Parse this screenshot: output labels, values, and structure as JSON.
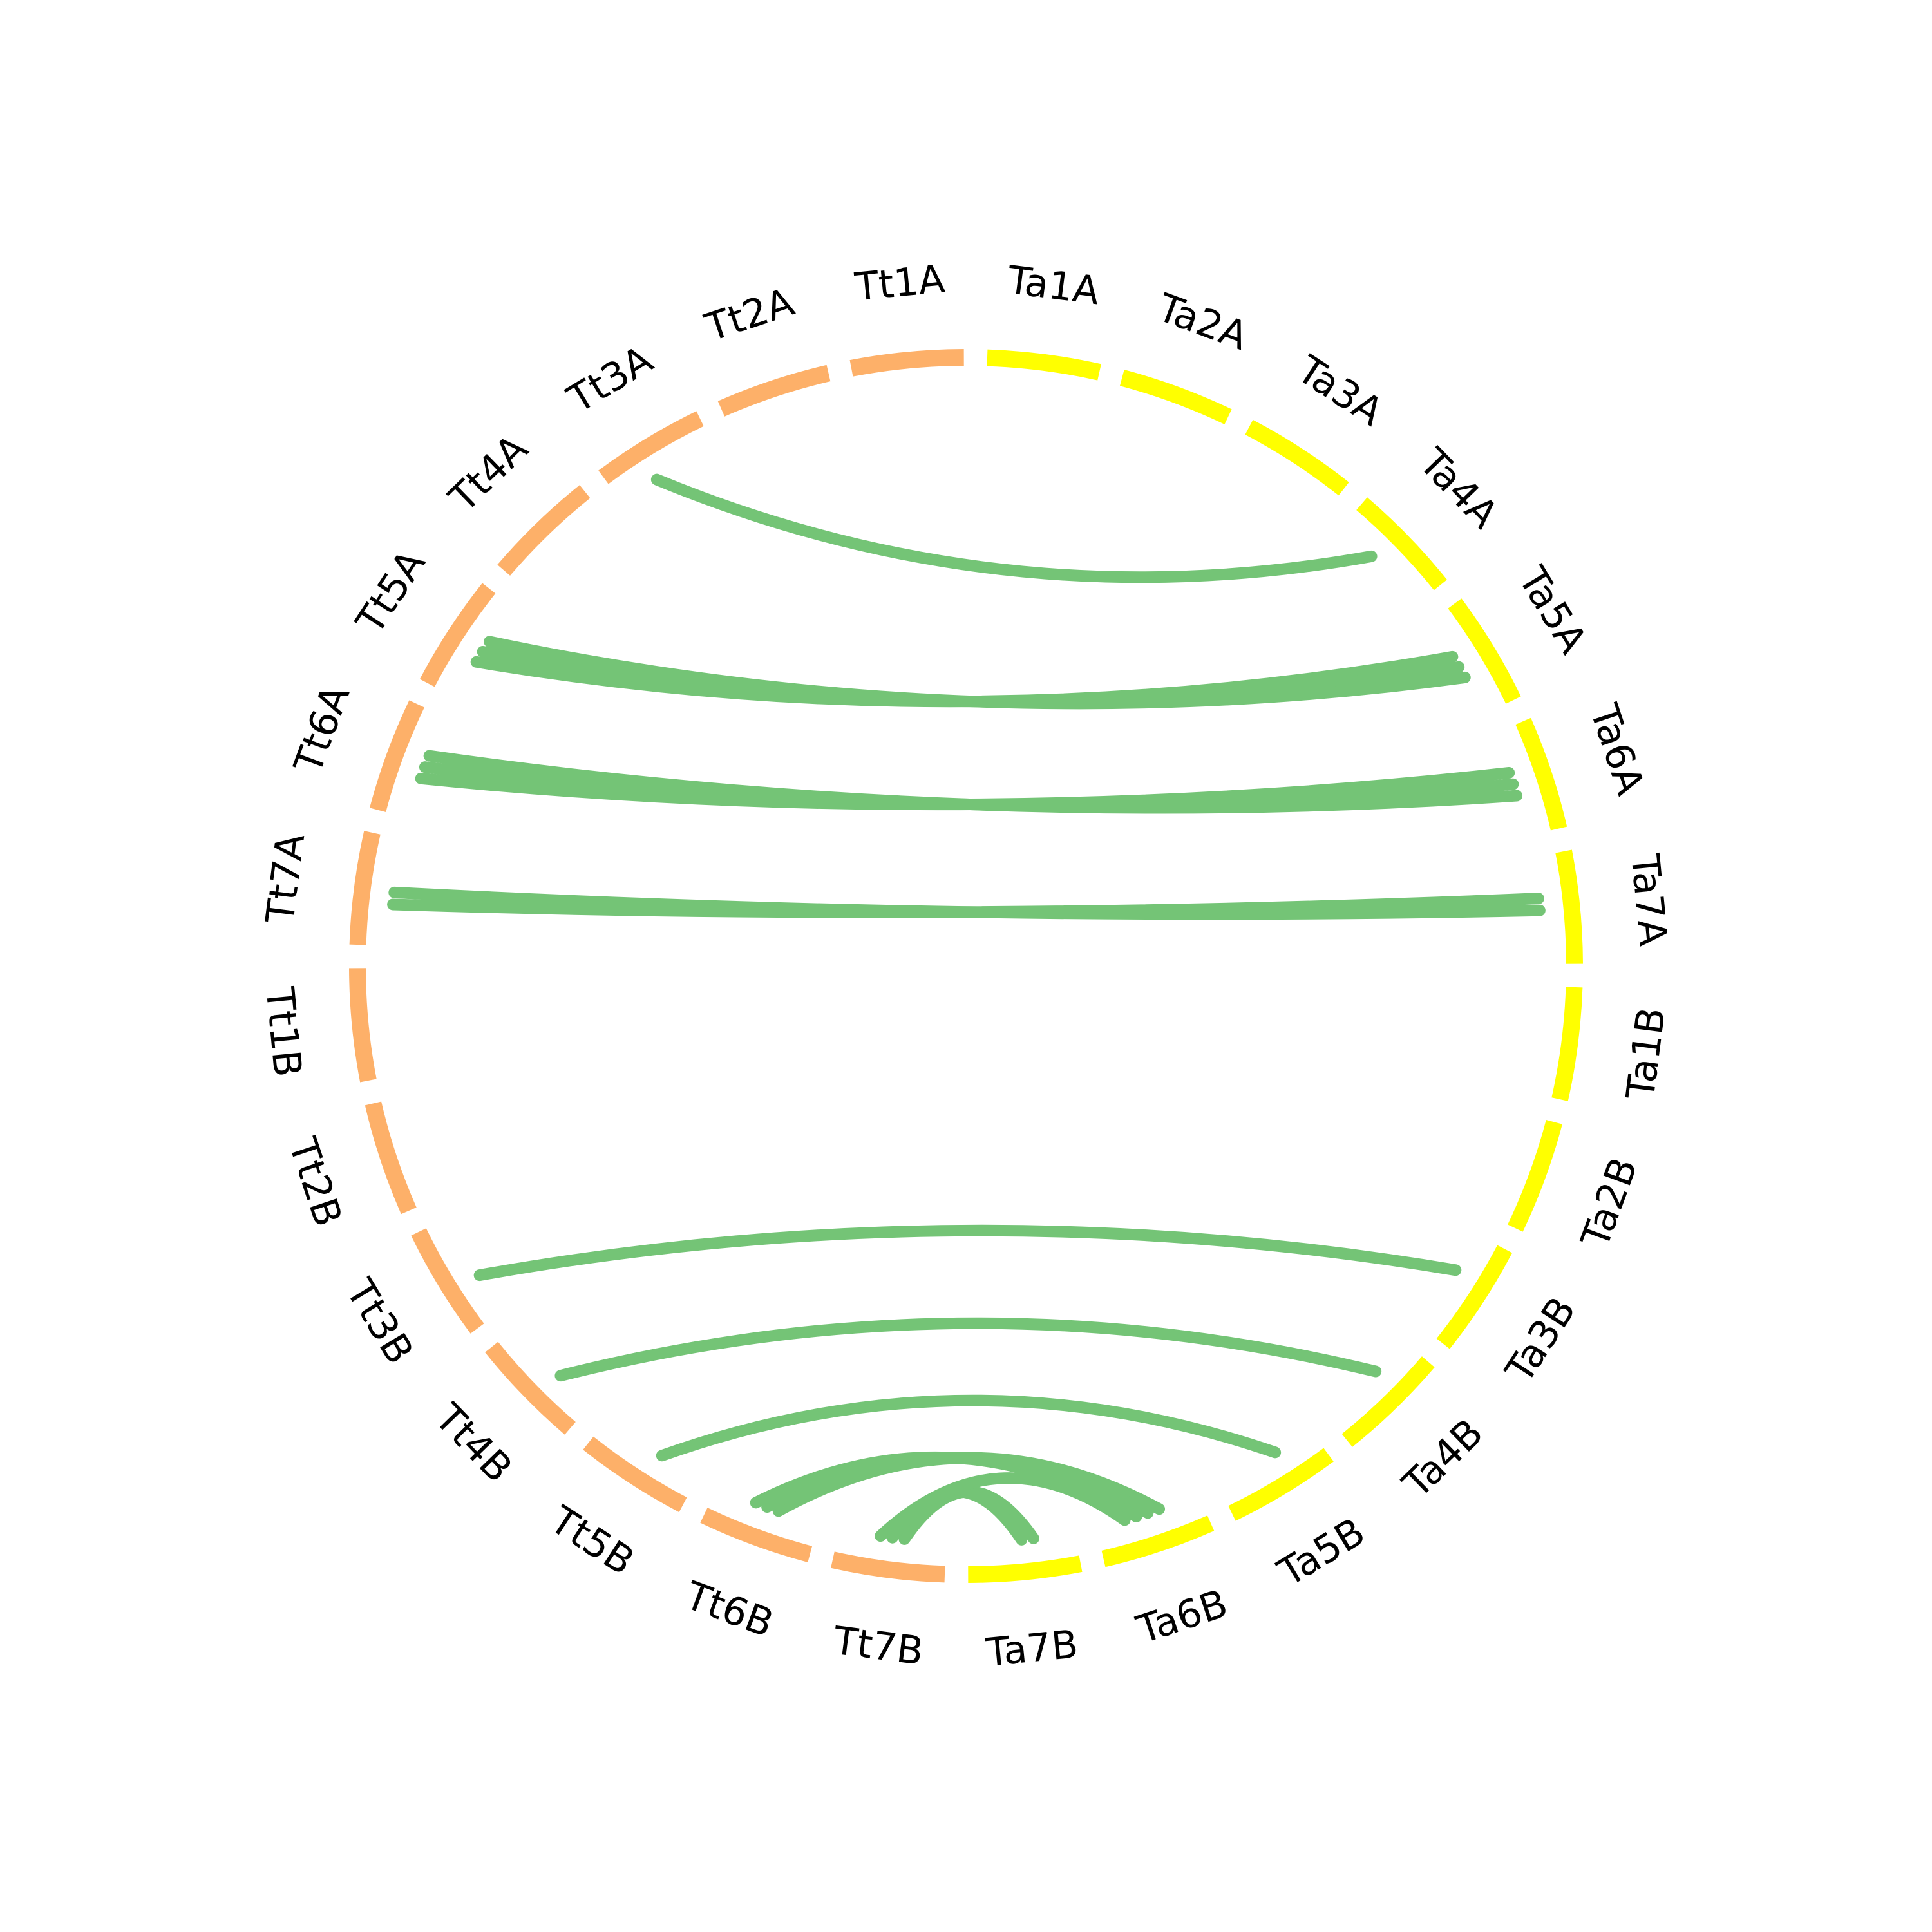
{
  "colors": {
    "tt": "#FDB069",
    "ta": "#FFFF00",
    "link": "#74C476"
  },
  "chromosomes": [
    {
      "id": "Ta1A",
      "group": "ta"
    },
    {
      "id": "Ta2A",
      "group": "ta"
    },
    {
      "id": "Ta3A",
      "group": "ta"
    },
    {
      "id": "Ta4A",
      "group": "ta"
    },
    {
      "id": "Ta5A",
      "group": "ta"
    },
    {
      "id": "Ta6A",
      "group": "ta"
    },
    {
      "id": "Ta7A",
      "group": "ta"
    },
    {
      "id": "Ta1B",
      "group": "ta"
    },
    {
      "id": "Ta2B",
      "group": "ta"
    },
    {
      "id": "Ta3B",
      "group": "ta"
    },
    {
      "id": "Ta4B",
      "group": "ta"
    },
    {
      "id": "Ta5B",
      "group": "ta"
    },
    {
      "id": "Ta6B",
      "group": "ta"
    },
    {
      "id": "Ta7B",
      "group": "ta"
    },
    {
      "id": "Tt7B",
      "group": "tt"
    },
    {
      "id": "Tt6B",
      "group": "tt"
    },
    {
      "id": "Tt5B",
      "group": "tt"
    },
    {
      "id": "Tt4B",
      "group": "tt"
    },
    {
      "id": "Tt3B",
      "group": "tt"
    },
    {
      "id": "Tt2B",
      "group": "tt"
    },
    {
      "id": "Tt1B",
      "group": "tt"
    },
    {
      "id": "Tt7A",
      "group": "tt"
    },
    {
      "id": "Tt6A",
      "group": "tt"
    },
    {
      "id": "Tt5A",
      "group": "tt"
    },
    {
      "id": "Tt4A",
      "group": "tt"
    },
    {
      "id": "Tt3A",
      "group": "tt"
    },
    {
      "id": "Tt2A",
      "group": "tt"
    },
    {
      "id": "Tt1A",
      "group": "tt"
    }
  ],
  "links": [
    {
      "from": "Tt3A",
      "to": "Ta4A"
    },
    {
      "from": "Tt5A",
      "to": "Ta5A"
    },
    {
      "from": "Tt5A",
      "to": "Ta5A"
    },
    {
      "from": "Tt5A",
      "to": "Ta5A"
    },
    {
      "from": "Tt6A",
      "to": "Ta6A"
    },
    {
      "from": "Tt6A",
      "to": "Ta6A"
    },
    {
      "from": "Tt6A",
      "to": "Ta6A"
    },
    {
      "from": "Tt7A",
      "to": "Ta7A"
    },
    {
      "from": "Tt7A",
      "to": "Ta7A"
    },
    {
      "from": "Tt3B",
      "to": "Ta3B"
    },
    {
      "from": "Tt4B",
      "to": "Ta4B"
    },
    {
      "from": "Tt5B",
      "to": "Ta5B"
    },
    {
      "from": "Tt6B",
      "to": "Ta6B"
    },
    {
      "from": "Tt6B",
      "to": "Ta6B"
    },
    {
      "from": "Tt6B",
      "to": "Ta6B"
    },
    {
      "from": "Tt7B",
      "to": "Ta7B"
    },
    {
      "from": "Tt7B",
      "to": "Ta7B"
    },
    {
      "from": "Tt7B",
      "to": "Ta6B"
    }
  ]
}
